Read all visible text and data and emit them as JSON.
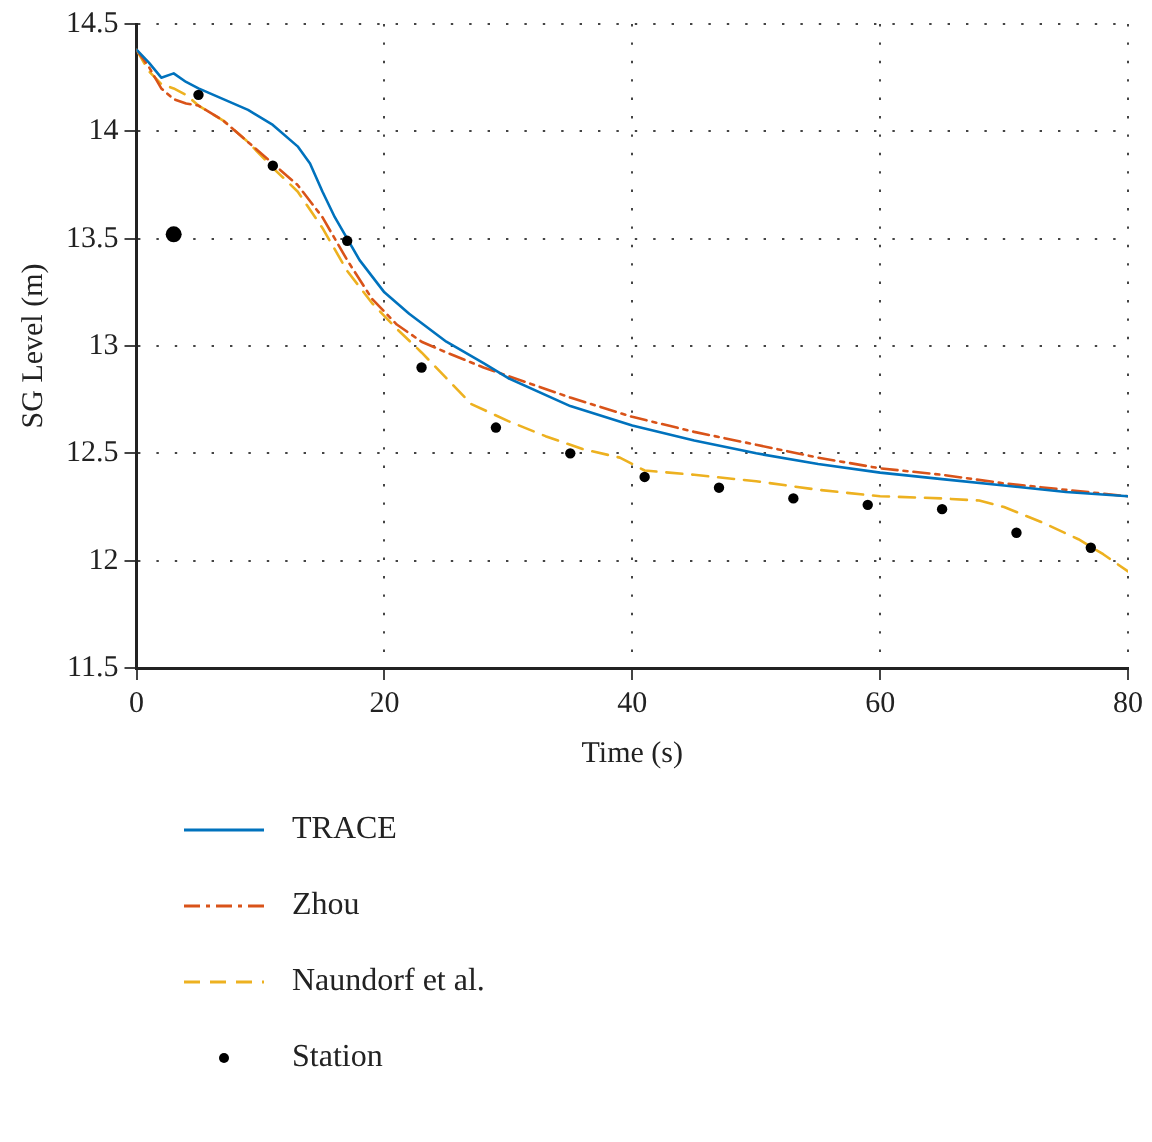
{
  "chart_data": {
    "type": "line",
    "xlabel": "Time (s)",
    "ylabel": "SG Level (m)",
    "xlim": [
      0,
      80
    ],
    "ylim": [
      11.5,
      14.5
    ],
    "xticks": [
      0,
      20,
      40,
      60,
      80
    ],
    "yticks": [
      11.5,
      12,
      12.5,
      13,
      13.5,
      14,
      14.5
    ],
    "grid": true,
    "legend": "bottom",
    "series": [
      {
        "name": "TRACE",
        "color": "#0072bd",
        "line_style": "solid",
        "marker": "none",
        "x": [
          0,
          1,
          2,
          3,
          4,
          5,
          7,
          9,
          11,
          13,
          14,
          15,
          16,
          17,
          18,
          20,
          22,
          25,
          28,
          30,
          35,
          40,
          45,
          50,
          55,
          60,
          65,
          70,
          75,
          80
        ],
        "values": [
          14.38,
          14.32,
          14.25,
          14.27,
          14.23,
          14.2,
          14.15,
          14.1,
          14.03,
          13.93,
          13.85,
          13.72,
          13.6,
          13.5,
          13.4,
          13.25,
          13.15,
          13.02,
          12.92,
          12.85,
          12.72,
          12.63,
          12.56,
          12.5,
          12.45,
          12.41,
          12.38,
          12.35,
          12.32,
          12.3
        ]
      },
      {
        "name": "Zhou",
        "color": "#d95319",
        "line_style": "dashdot",
        "marker": "none",
        "x": [
          0,
          1,
          2,
          3,
          4,
          5,
          7,
          9,
          11,
          13,
          15,
          17,
          19,
          21,
          23,
          25,
          28,
          30,
          35,
          40,
          45,
          50,
          55,
          60,
          65,
          70,
          75,
          80
        ],
        "values": [
          14.38,
          14.3,
          14.2,
          14.15,
          14.13,
          14.12,
          14.05,
          13.95,
          13.85,
          13.75,
          13.6,
          13.4,
          13.22,
          13.1,
          13.02,
          12.97,
          12.9,
          12.86,
          12.76,
          12.67,
          12.6,
          12.54,
          12.48,
          12.43,
          12.4,
          12.36,
          12.33,
          12.3
        ]
      },
      {
        "name": "Naundorf et al.",
        "color": "#edb120",
        "line_style": "dashed",
        "marker": "none",
        "x": [
          0,
          1,
          2,
          3,
          4,
          5,
          7,
          9,
          11,
          13,
          15,
          17,
          19,
          21,
          23,
          25,
          27,
          30,
          33,
          36,
          39,
          41,
          45,
          50,
          55,
          60,
          65,
          68,
          70,
          73,
          76,
          78,
          80
        ],
        "values": [
          14.38,
          14.28,
          14.22,
          14.2,
          14.17,
          14.12,
          14.05,
          13.95,
          13.83,
          13.72,
          13.55,
          13.35,
          13.2,
          13.08,
          12.97,
          12.85,
          12.73,
          12.65,
          12.58,
          12.52,
          12.48,
          12.42,
          12.4,
          12.37,
          12.33,
          12.3,
          12.29,
          12.28,
          12.25,
          12.18,
          12.1,
          12.03,
          11.95
        ]
      },
      {
        "name": "Station",
        "type": "scatter",
        "color": "#000000",
        "marker": "circle",
        "x": [
          5,
          11,
          17,
          23,
          29,
          35,
          41,
          47,
          53,
          59,
          65,
          71,
          77
        ],
        "values": [
          14.17,
          13.84,
          13.49,
          12.9,
          12.62,
          12.5,
          12.39,
          12.34,
          12.29,
          12.26,
          12.24,
          12.13,
          12.06
        ]
      },
      {
        "type": "scatter",
        "color": "#000000",
        "marker": "circle",
        "x": [
          3
        ],
        "values": [
          13.52
        ]
      }
    ]
  }
}
